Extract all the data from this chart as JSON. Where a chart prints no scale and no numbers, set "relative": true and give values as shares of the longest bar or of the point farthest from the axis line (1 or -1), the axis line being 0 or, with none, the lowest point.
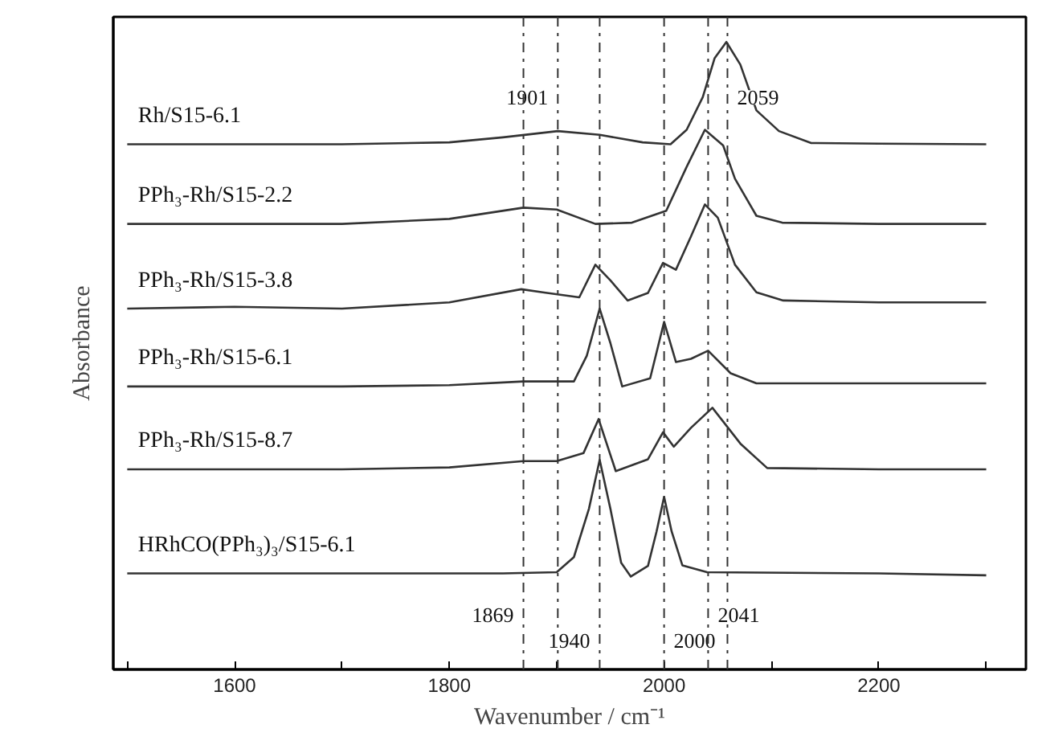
{
  "chart_data": {
    "type": "line",
    "relative": true,
    "xlabel": "Wavenumber / cm⁻¹",
    "ylabel": "Absorbance",
    "xlim": [
      1487,
      2337
    ],
    "xticks": [
      {
        "value": 1500,
        "label": null
      },
      1600,
      {
        "value": 1700,
        "label": null
      },
      1800,
      {
        "value": 1900,
        "label": null
      },
      2000,
      {
        "value": 2100,
        "label": null
      },
      2200,
      {
        "value": 2300,
        "label": null
      }
    ],
    "grid": false,
    "tick_labels": "x",
    "series": [
      {
        "name": "Rh/S15-6.1",
        "color": "#333333",
        "x": [
          1500,
          1700,
          1800,
          1850,
          1901,
          1940,
          1980,
          2006,
          2021,
          2036,
          2047,
          2058,
          2071,
          2086,
          2107,
          2137,
          2200,
          2300
        ],
        "values": [
          0.837,
          0.837,
          0.84,
          0.848,
          0.858,
          0.852,
          0.84,
          0.837,
          0.86,
          0.912,
          0.974,
          1.0,
          0.964,
          0.891,
          0.858,
          0.839,
          0.838,
          0.837
        ]
      },
      {
        "name": "PPh₃-Rh/S15-2.2",
        "color": "#333333",
        "x": [
          1500,
          1700,
          1800,
          1869,
          1900,
          1936,
          1970,
          2002,
          2021,
          2038,
          2055,
          2066,
          2086,
          2110,
          2200,
          2300
        ],
        "values": [
          0.71,
          0.71,
          0.718,
          0.736,
          0.733,
          0.71,
          0.712,
          0.731,
          0.801,
          0.86,
          0.835,
          0.782,
          0.723,
          0.712,
          0.71,
          0.71
        ]
      },
      {
        "name": "PPh₃-Rh/S15-3.8",
        "color": "#333333",
        "x": [
          1500,
          1600,
          1700,
          1800,
          1867,
          1887,
          1921,
          1936,
          1950,
          1966,
          1985,
          1999,
          2011,
          2025,
          2038,
          2050,
          2066,
          2086,
          2111,
          2200,
          2300
        ],
        "values": [
          0.575,
          0.578,
          0.575,
          0.585,
          0.606,
          0.601,
          0.593,
          0.645,
          0.62,
          0.588,
          0.6,
          0.648,
          0.637,
          0.69,
          0.741,
          0.72,
          0.645,
          0.601,
          0.588,
          0.585,
          0.585
        ]
      },
      {
        "name": "PPh₃-Rh/S15-6.1",
        "color": "#333333",
        "x": [
          1500,
          1700,
          1800,
          1869,
          1916,
          1928,
          1940,
          1950,
          1961,
          1987,
          2000,
          2011,
          2025,
          2041,
          2062,
          2086,
          2200,
          2300
        ],
        "values": [
          0.451,
          0.451,
          0.453,
          0.459,
          0.459,
          0.5,
          0.575,
          0.52,
          0.451,
          0.464,
          0.554,
          0.49,
          0.495,
          0.508,
          0.472,
          0.456,
          0.456,
          0.456
        ]
      },
      {
        "name": "PPh₃-Rh/S15-8.7",
        "color": "#333333",
        "x": [
          1500,
          1700,
          1800,
          1869,
          1900,
          1925,
          1939,
          1955,
          1985,
          1999,
          2009,
          2025,
          2045,
          2071,
          2096,
          2200,
          2300
        ],
        "values": [
          0.319,
          0.319,
          0.322,
          0.332,
          0.332,
          0.345,
          0.399,
          0.316,
          0.335,
          0.378,
          0.355,
          0.385,
          0.417,
          0.36,
          0.321,
          0.319,
          0.319
        ]
      },
      {
        "name": "HRhCO(PPh₃)₃/S15-6.1",
        "color": "#333333",
        "x": [
          1500,
          1700,
          1850,
          1900,
          1916,
          1930,
          1940,
          1950,
          1960,
          1969,
          1985,
          1993,
          2000,
          2007,
          2017,
          2040,
          2200,
          2300
        ],
        "values": [
          0.153,
          0.153,
          0.153,
          0.155,
          0.179,
          0.256,
          0.334,
          0.256,
          0.17,
          0.148,
          0.165,
          0.22,
          0.275,
          0.22,
          0.166,
          0.155,
          0.153,
          0.15
        ]
      }
    ],
    "ref_lines": [
      {
        "axis": "x",
        "value": 1901,
        "label": "1901",
        "line_style": "dashdot",
        "color": "#333333"
      },
      {
        "axis": "x",
        "value": 2059,
        "label": "2059",
        "line_style": "dashdot",
        "color": "#333333"
      },
      {
        "axis": "x",
        "value": 1869,
        "label": "1869",
        "line_style": "dashdot",
        "color": "#333333"
      },
      {
        "axis": "x",
        "value": 1940,
        "label": "1940",
        "line_style": "dashdot",
        "color": "#333333"
      },
      {
        "axis": "x",
        "value": 2000,
        "label": "2000",
        "line_style": "dashdot",
        "color": "#333333"
      },
      {
        "axis": "x",
        "value": 2041,
        "label": "2041",
        "line_style": "dashdot",
        "color": "#333333"
      }
    ]
  }
}
